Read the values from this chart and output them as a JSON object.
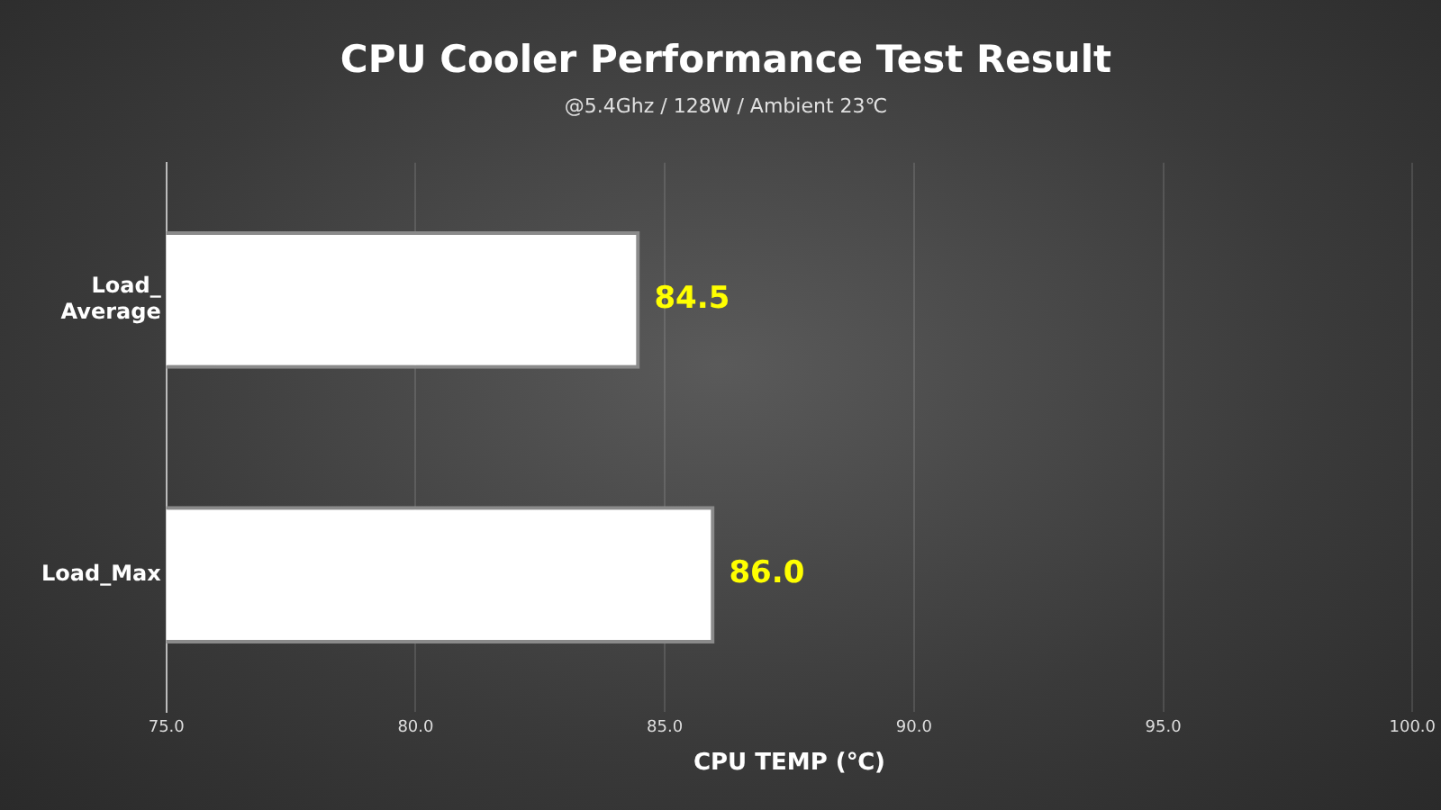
{
  "chart_data": {
    "type": "bar",
    "orientation": "horizontal",
    "title": "CPU Cooler Performance Test Result",
    "subtitle": "@5.4Ghz / 128W / Ambient 23℃",
    "xlabel": "CPU TEMP (℃)",
    "categories": [
      "Load_ Average",
      "Load_Max"
    ],
    "series": [
      {
        "color": "#ffffff",
        "values": [
          84.5,
          86.0
        ],
        "value_labels": [
          "84.5",
          "86.0"
        ]
      }
    ],
    "xlim": [
      75,
      100
    ],
    "xticks": [
      {
        "value": 75,
        "label": "75.0"
      },
      {
        "value": 80,
        "label": "80.0"
      },
      {
        "value": 85,
        "label": "85.0"
      },
      {
        "value": 90,
        "label": "90.0"
      },
      {
        "value": 95,
        "label": "95.0"
      },
      {
        "value": 100,
        "label": "100.0"
      }
    ],
    "grid": "x",
    "legend": false
  }
}
